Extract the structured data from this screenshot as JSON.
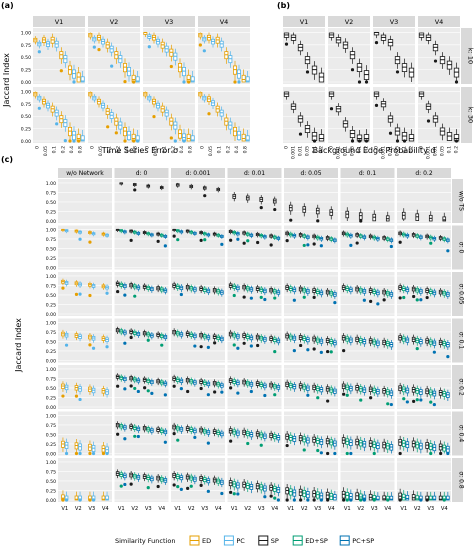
{
  "chart_data": [
    {
      "panel": "a",
      "panel_label": "(a)",
      "type": "boxplot",
      "facet_cols": [
        "V1",
        "V2",
        "V3",
        "V4"
      ],
      "facet_rows": [
        "k: 10",
        "k: 30"
      ],
      "x_ticks": [
        "0",
        "0.05",
        "0.1",
        "0.2",
        "0.4",
        "0.8"
      ],
      "y_ticks": [
        "0.00",
        "0.25",
        "0.50",
        "0.75",
        "1.00"
      ],
      "ylim": [
        0,
        1.05
      ],
      "ylabel": "Jaccard Index",
      "xlabel": "Time Series Error σ",
      "series": [
        {
          "name": "ED",
          "color": "#e69f00"
        },
        {
          "name": "PC",
          "color": "#56b4e9"
        },
        {
          "name": "SP",
          "color": "#1a1a1a"
        },
        {
          "name": "ED+SP",
          "color": "#009e73"
        },
        {
          "name": "PC+SP",
          "color": "#0072b2"
        }
      ],
      "approx_medians_k10": {
        "V1": [
          0.85,
          0.85,
          0.85,
          0.55,
          0.25,
          0.1
        ],
        "V2": [
          0.95,
          0.9,
          0.75,
          0.55,
          0.3,
          0.05
        ],
        "V3": [
          1.0,
          0.9,
          0.75,
          0.6,
          0.3,
          0.05
        ],
        "V4": [
          0.95,
          0.9,
          0.85,
          0.55,
          0.25,
          0.05
        ]
      },
      "approx_medians_k30": {
        "V1": [
          0.95,
          0.8,
          0.65,
          0.45,
          0.2,
          0.05
        ],
        "V2": [
          0.95,
          0.8,
          0.6,
          0.4,
          0.2,
          0.05
        ],
        "V3": [
          0.95,
          0.8,
          0.65,
          0.4,
          0.15,
          0.05
        ],
        "V4": [
          0.95,
          0.85,
          0.65,
          0.4,
          0.2,
          0.05
        ]
      }
    },
    {
      "panel": "b",
      "panel_label": "(b)",
      "type": "boxplot",
      "facet_cols": [
        "V1",
        "V2",
        "V3",
        "V4"
      ],
      "facet_rows": [
        "k: 10",
        "k: 30"
      ],
      "x_ticks": [
        "0",
        "0.001",
        "0.01",
        "0.05",
        "0.1",
        "0.2"
      ],
      "y_ticks": [
        "0.00",
        "0.25",
        "0.50",
        "0.75",
        "1.00"
      ],
      "ylim": [
        0,
        1.05
      ],
      "xlabel": "Background Edge Probability d",
      "series": [
        {
          "name": "SP",
          "color": "#1a1a1a"
        }
      ],
      "approx_medians_k10": {
        "V1": [
          0.95,
          0.9,
          0.7,
          0.45,
          0.25,
          0.1
        ],
        "V2": [
          0.95,
          0.85,
          0.75,
          0.55,
          0.3,
          0.15
        ],
        "V3": [
          1.0,
          0.9,
          0.8,
          0.45,
          0.3,
          0.2
        ],
        "V4": [
          0.95,
          0.9,
          0.7,
          0.45,
          0.35,
          0.2
        ]
      },
      "approx_medians_k30": {
        "V1": [
          0.95,
          0.7,
          0.45,
          0.25,
          0.1,
          0.05
        ],
        "V2": [
          0.95,
          0.65,
          0.35,
          0.15,
          0.05,
          0.05
        ],
        "V3": [
          0.95,
          0.75,
          0.45,
          0.2,
          0.1,
          0.05
        ],
        "V4": [
          0.95,
          0.7,
          0.45,
          0.2,
          0.1,
          0.05
        ]
      }
    },
    {
      "panel": "c",
      "panel_label": "(c)",
      "type": "boxplot",
      "facet_cols": [
        "w/o Network",
        "d: 0",
        "d: 0.001",
        "d: 0.01",
        "d: 0.05",
        "d: 0.1",
        "d: 0.2"
      ],
      "facet_rows": [
        "w/o TS",
        "σ: 0",
        "σ: 0.05",
        "σ: 0.1",
        "σ: 0.2",
        "σ: 0.4",
        "σ: 0.8"
      ],
      "x_ticks": [
        "V1",
        "V2",
        "V3",
        "V4"
      ],
      "y_ticks": [
        "0.00",
        "0.25",
        "0.50",
        "0.75",
        "1.00"
      ],
      "ylim": [
        0,
        1.05
      ],
      "ylabel": "Jaccard Index",
      "approx_medians_by_row": {
        "w/o TS": [
          null,
          1.0,
          0.95,
          0.65,
          0.35,
          0.18,
          0.15
        ],
        "σ: 0": [
          1.0,
          1.0,
          1.0,
          0.95,
          0.9,
          0.9,
          0.9
        ],
        "σ: 0.05": [
          0.85,
          0.8,
          0.75,
          0.75,
          0.7,
          0.7,
          0.7
        ],
        "σ: 0.1": [
          0.7,
          0.8,
          0.75,
          0.7,
          0.65,
          0.6,
          0.6
        ],
        "σ: 0.2": [
          0.55,
          0.8,
          0.75,
          0.7,
          0.6,
          0.55,
          0.5
        ],
        "σ: 0.4": [
          0.25,
          0.75,
          0.7,
          0.6,
          0.45,
          0.35,
          0.3
        ],
        "σ: 0.8": [
          0.05,
          0.7,
          0.65,
          0.45,
          0.25,
          0.15,
          0.1
        ]
      }
    }
  ],
  "legend": {
    "title": "Similarity Function",
    "items": [
      {
        "label": "ED",
        "color": "#e69f00"
      },
      {
        "label": "PC",
        "color": "#56b4e9"
      },
      {
        "label": "SP",
        "color": "#1a1a1a"
      },
      {
        "label": "ED+SP",
        "color": "#009e73"
      },
      {
        "label": "PC+SP",
        "color": "#0072b2"
      }
    ]
  }
}
